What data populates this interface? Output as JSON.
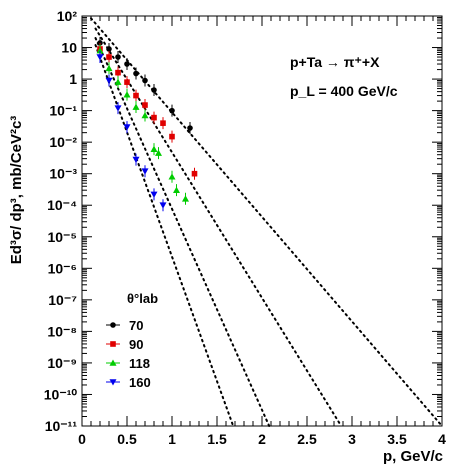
{
  "chart_data": {
    "type": "scatter",
    "title": "",
    "xlabel": "p, GeV/c",
    "ylabel": "Ed³σ/ dp³, mb/CeV²c³",
    "xlim": [
      0,
      4
    ],
    "ylim": [
      1e-11,
      100
    ],
    "yscale": "log",
    "x_ticks": [
      "0",
      "0.5",
      "1",
      "1.5",
      "2",
      "2.5",
      "3",
      "3.5",
      "4"
    ],
    "y_tick_exponents": [
      2,
      1,
      0,
      -1,
      -2,
      -3,
      -4,
      -5,
      -6,
      -7,
      -8,
      -9,
      -10,
      -11
    ],
    "y_tick_labels": [
      "10²",
      "10",
      "1",
      "10⁻¹",
      "10⁻²",
      "10⁻³",
      "10⁻⁴",
      "10⁻⁵",
      "10⁻⁶",
      "10⁻⁷",
      "10⁻⁸",
      "10⁻⁹",
      "10⁻¹⁰",
      "10⁻¹¹"
    ],
    "annotations": {
      "reaction": "p+Ta → π⁺+X",
      "beam": "p_L = 400 GeV/c"
    },
    "legend": {
      "title": "θ°lab",
      "placement": "bottom-left"
    },
    "series": [
      {
        "name": "70",
        "marker": "circle",
        "color": "#000000",
        "x": [
          0.2,
          0.3,
          0.4,
          0.5,
          0.6,
          0.7,
          0.8,
          1.0,
          1.2
        ],
        "y": [
          14,
          9,
          5,
          3,
          1.5,
          0.9,
          0.45,
          0.1,
          0.028
        ],
        "fit": [
          [
            0.1,
            85
          ],
          [
            4.0,
            1e-11
          ]
        ]
      },
      {
        "name": "90",
        "marker": "square",
        "color": "#e00000",
        "x": [
          0.2,
          0.3,
          0.4,
          0.5,
          0.6,
          0.7,
          0.8,
          0.9,
          1.0,
          1.25
        ],
        "y": [
          9,
          5,
          1.6,
          0.8,
          0.3,
          0.15,
          0.06,
          0.04,
          0.015,
          0.001
        ],
        "fit": [
          [
            0.15,
            40
          ],
          [
            2.88,
            1e-11
          ]
        ]
      },
      {
        "name": "118",
        "marker": "triangle-up",
        "color": "#00cc00",
        "x": [
          0.2,
          0.3,
          0.4,
          0.5,
          0.6,
          0.7,
          0.8,
          0.85,
          1.0,
          1.05,
          1.15
        ],
        "y": [
          8,
          2.2,
          0.8,
          0.32,
          0.13,
          0.07,
          0.006,
          0.0045,
          0.0008,
          0.0003,
          0.00016
        ],
        "fit": [
          [
            0.15,
            20
          ],
          [
            2.08,
            1e-11
          ]
        ]
      },
      {
        "name": "160",
        "marker": "triangle-down",
        "color": "#0000ee",
        "x": [
          0.2,
          0.3,
          0.4,
          0.5,
          0.6,
          0.7,
          0.8,
          0.9
        ],
        "y": [
          5,
          0.9,
          0.12,
          0.03,
          0.0028,
          0.0012,
          0.00022,
          0.0001
        ],
        "fit": [
          [
            0.15,
            12
          ],
          [
            1.68,
            1e-11
          ]
        ]
      }
    ]
  }
}
